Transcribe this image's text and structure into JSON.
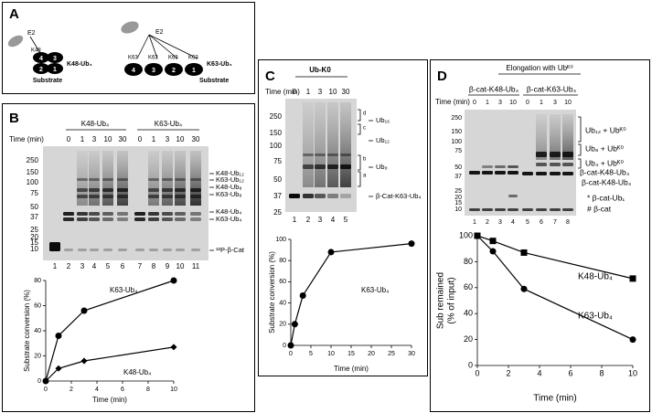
{
  "panel_a": {
    "label": "A",
    "left": {
      "e2": "E2",
      "linkage": "K48",
      "blocks": [
        "4",
        "3",
        "2",
        "1"
      ],
      "name": "K48-Ub₄",
      "substrate": "Substrate"
    },
    "right": {
      "e2": "E2",
      "linkages": [
        "K63",
        "K63",
        "K63",
        "K63"
      ],
      "blocks": [
        "4",
        "3",
        "2",
        "1"
      ],
      "name": "K63-Ub₄",
      "substrate": "Substrate"
    }
  },
  "panel_b": {
    "label": "B",
    "time_label": "Time (min)",
    "groups": [
      "K48-Ub₄",
      "K63-Ub₄"
    ],
    "times": [
      "0",
      "1",
      "3",
      "10",
      "30",
      "0",
      "1",
      "3",
      "10",
      "30"
    ],
    "markers": [
      "250",
      "150",
      "100",
      "75",
      "50",
      "37",
      "25",
      "20",
      "15",
      "10"
    ],
    "bands": [
      "K48-Ub₁₂",
      "K63-Ub₁₂",
      "K48-Ub₈",
      "K63-Ub₈",
      "K48-Ub₄",
      "K63-Ub₄",
      "³²P-β-Cat"
    ],
    "lanes": [
      "1",
      "2",
      "3",
      "4",
      "5",
      "6",
      "7",
      "8",
      "9",
      "10",
      "11"
    ]
  },
  "panel_c": {
    "label": "C",
    "header": "Ub-K0",
    "time_label": "Time (min)",
    "times": [
      "0",
      "1",
      "3",
      "10",
      "30"
    ],
    "markers": [
      "250",
      "150",
      "100",
      "75",
      "50",
      "37",
      "25"
    ],
    "brackets": [
      "d",
      "c",
      "b",
      "a"
    ],
    "bands": [
      "Ub₁₆",
      "Ub₁₂",
      "Ub₈",
      "β-Cat-K63-Ub₄"
    ],
    "lanes": [
      "1",
      "2",
      "3",
      "4",
      "5"
    ]
  },
  "panel_d": {
    "label": "D",
    "header": "Elongation with Ubᴷ⁰",
    "groups": [
      "β-cat-K48-Ub₄",
      "β-cat-K63-Ub₄"
    ],
    "time_label": "Time (min)",
    "times": [
      "0",
      "1",
      "3",
      "10",
      "0",
      "1",
      "3",
      "10"
    ],
    "markers": [
      "250",
      "150",
      "100",
      "75",
      "50",
      "37",
      "25",
      "20",
      "15",
      "10"
    ],
    "bands": [
      "Ub₁₂ + Ubᴷ⁰",
      "Ub₈ + Ubᴷ⁰",
      "Ub₄ + Ubᴷ⁰",
      "β-cat-K48-Ub₄",
      "β-cat-K48-Ub₄",
      "* β-cat-Ub₁",
      "# β-cat"
    ],
    "lanes": [
      "1",
      "2",
      "3",
      "4",
      "5",
      "6",
      "7",
      "8"
    ]
  },
  "chart_data": [
    {
      "type": "line",
      "x_label": "Time (min)",
      "y_label": [
        "Substrate conversion (%)"
      ],
      "x": [
        0,
        1,
        3,
        10
      ],
      "xlim": [
        0,
        10
      ],
      "xticks": [
        0,
        2,
        4,
        6,
        8,
        10
      ],
      "ylim": [
        0,
        80
      ],
      "yticks": [
        0,
        20,
        40,
        60,
        80
      ],
      "series": [
        {
          "name": "K63-Ub₄",
          "color": "#000000",
          "marker": "circle",
          "values": [
            0,
            36,
            56,
            80
          ]
        },
        {
          "name": "K48-Ub₄",
          "color": "#000000",
          "marker": "diamond",
          "values": [
            0,
            10,
            16,
            27
          ]
        }
      ]
    },
    {
      "type": "line",
      "x_label": "Time (min)",
      "y_label": [
        "Substrate conversion (%)"
      ],
      "x": [
        0,
        1,
        3,
        10,
        30
      ],
      "xlim": [
        0,
        30
      ],
      "xticks": [
        0,
        5,
        10,
        15,
        20,
        25,
        30
      ],
      "ylim": [
        0,
        100
      ],
      "yticks": [
        0,
        20,
        40,
        60,
        80,
        100
      ],
      "series": [
        {
          "name": "K63-Ub₄",
          "color": "#000000",
          "marker": "circle",
          "values": [
            0,
            20,
            47,
            88,
            96
          ]
        }
      ]
    },
    {
      "type": "line",
      "x_label": "Time (min)",
      "y_label": [
        "Sub remained",
        "(% of input)"
      ],
      "x": [
        0,
        1,
        3,
        10
      ],
      "xlim": [
        0,
        10
      ],
      "xticks": [
        0,
        2,
        4,
        6,
        8,
        10
      ],
      "ylim": [
        0,
        100
      ],
      "yticks": [
        0,
        20,
        40,
        60,
        80,
        100
      ],
      "series": [
        {
          "name": "K48-Ub₄",
          "color": "#000000",
          "marker": "square",
          "values": [
            100,
            96,
            87,
            67
          ]
        },
        {
          "name": "K63-Ub₄",
          "color": "#000000",
          "marker": "circle",
          "values": [
            100,
            88,
            59,
            20
          ]
        }
      ]
    }
  ]
}
